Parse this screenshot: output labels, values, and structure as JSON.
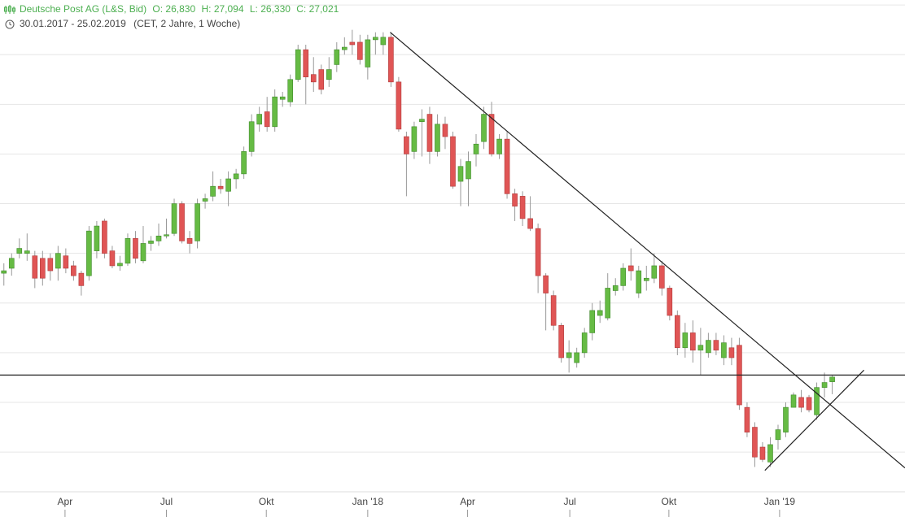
{
  "header": {
    "instrument": "Deutsche Post AG (L&S, Bid)",
    "ohlc": [
      "O: 26,830",
      "H: 27,094",
      "L: 26,330",
      "C: 27,021"
    ],
    "range": "30.01.2017 - 25.02.2019",
    "settings": "(CET, 2 Jahre, 1 Woche)"
  },
  "chart_data": {
    "type": "candlestick",
    "open": [
      31.2,
      31.4,
      32.0,
      32.0,
      31.9,
      31.8,
      31.8,
      31.4,
      31.9,
      31.5,
      31.2,
      31.1,
      32.1,
      33.3,
      32.1,
      31.5,
      31.6,
      32.6,
      31.7,
      32.4,
      32.5,
      32.7,
      32.8,
      34.0,
      32.6,
      32.5,
      34.1,
      34.3,
      34.7,
      34.5,
      35.0,
      35.2,
      36.1,
      37.2,
      37.7,
      37.1,
      38.2,
      38.1,
      39.0,
      40.2,
      39.2,
      39.4,
      39.0,
      39.6,
      40.2,
      40.5,
      40.5,
      39.5,
      40.6,
      40.4,
      40.7,
      38.9,
      36.7,
      36.1,
      37.3,
      37.6,
      36.1,
      37.2,
      36.7,
      34.9,
      35.0,
      36.0,
      36.5,
      37.6,
      36.0,
      36.6,
      34.4,
      34.3,
      33.4,
      33.0,
      31.1,
      30.3,
      29.1,
      27.8,
      27.6,
      28.0,
      28.8,
      29.5,
      29.4,
      30.5,
      30.7,
      31.5,
      30.4,
      30.9,
      31.0,
      31.5,
      30.6,
      29.5,
      28.2,
      28.8,
      28.1,
      28.0,
      28.5,
      27.8,
      28.2,
      28.3,
      25.8,
      25.0,
      24.2,
      23.6,
      24.5,
      24.8,
      25.8,
      26.2,
      26.2,
      25.5,
      26.6,
      26.83
    ],
    "high": [
      31.6,
      32.0,
      32.6,
      32.8,
      32.1,
      32.1,
      32.0,
      32.3,
      32.2,
      31.7,
      31.3,
      33.1,
      33.3,
      33.4,
      32.3,
      31.9,
      32.8,
      32.9,
      33.1,
      32.7,
      33.2,
      33.4,
      34.2,
      34.1,
      32.9,
      34.2,
      34.4,
      35.3,
      35.0,
      35.3,
      35.4,
      36.3,
      37.6,
      37.9,
      38.3,
      38.6,
      38.5,
      39.2,
      40.4,
      40.4,
      39.9,
      39.6,
      39.9,
      40.5,
      40.7,
      41.0,
      40.8,
      40.8,
      40.9,
      40.9,
      40.9,
      39.1,
      36.9,
      37.3,
      37.8,
      37.9,
      37.6,
      37.5,
      36.9,
      35.8,
      36.1,
      36.8,
      37.9,
      38.1,
      36.8,
      36.9,
      34.6,
      34.5,
      34.3,
      33.2,
      31.2,
      30.5,
      29.2,
      28.5,
      28.2,
      29.0,
      30.0,
      30.1,
      31.2,
      31.0,
      31.6,
      32.2,
      31.5,
      31.5,
      32.0,
      31.7,
      30.7,
      29.7,
      29.2,
      29.3,
      29.0,
      28.8,
      28.8,
      28.7,
      28.6,
      28.6,
      26.0,
      25.2,
      24.4,
      24.6,
      25.1,
      26.0,
      26.4,
      26.5,
      26.3,
      26.8,
      27.2,
      27.094
    ],
    "low": [
      30.7,
      31.1,
      31.8,
      31.7,
      30.6,
      30.7,
      30.9,
      30.9,
      31.2,
      30.9,
      30.3,
      30.9,
      31.8,
      31.8,
      31.4,
      31.3,
      31.5,
      31.6,
      31.6,
      32.1,
      32.3,
      32.6,
      32.7,
      32.4,
      32.0,
      32.2,
      33.8,
      34.1,
      34.4,
      33.9,
      34.6,
      35.0,
      35.9,
      36.9,
      36.9,
      36.9,
      37.9,
      37.9,
      38.9,
      38.0,
      38.5,
      38.4,
      38.7,
      39.3,
      40.0,
      40.0,
      39.6,
      39.0,
      40.0,
      40.0,
      38.7,
      36.9,
      34.3,
      35.8,
      35.9,
      35.6,
      35.9,
      36.2,
      34.6,
      33.9,
      33.9,
      35.5,
      36.2,
      35.9,
      35.8,
      34.2,
      33.3,
      33.1,
      32.9,
      30.4,
      28.9,
      28.9,
      27.6,
      27.2,
      27.4,
      27.8,
      28.5,
      29.2,
      29.3,
      30.3,
      30.5,
      30.9,
      30.2,
      30.5,
      30.8,
      30.3,
      29.3,
      27.9,
      27.8,
      27.6,
      27.1,
      27.8,
      27.9,
      27.5,
      27.5,
      25.7,
      24.6,
      23.4,
      23.6,
      23.4,
      24.1,
      24.6,
      25.8,
      25.6,
      25.6,
      25.3,
      26.2,
      26.33
    ],
    "close": [
      31.3,
      31.8,
      32.2,
      32.1,
      31.0,
      31.0,
      31.3,
      32.0,
      31.4,
      31.1,
      30.7,
      32.9,
      33.1,
      32.0,
      31.5,
      31.6,
      32.6,
      31.8,
      32.4,
      32.5,
      32.7,
      32.75,
      34.0,
      32.5,
      32.4,
      34.0,
      34.2,
      34.7,
      34.6,
      35.0,
      35.2,
      36.1,
      37.3,
      37.6,
      37.1,
      38.3,
      38.3,
      39.0,
      40.2,
      39.1,
      38.9,
      38.6,
      39.4,
      40.2,
      40.3,
      40.4,
      39.8,
      40.6,
      40.7,
      40.7,
      38.9,
      37.0,
      36.0,
      37.1,
      37.4,
      36.1,
      37.2,
      36.7,
      34.7,
      35.5,
      35.7,
      36.4,
      37.6,
      36.0,
      36.6,
      34.4,
      33.9,
      33.4,
      33.0,
      31.1,
      30.4,
      29.1,
      27.8,
      28.0,
      28.0,
      28.8,
      29.7,
      29.7,
      30.6,
      30.7,
      31.4,
      31.3,
      31.3,
      31.0,
      31.5,
      30.6,
      29.5,
      28.2,
      28.8,
      28.1,
      28.3,
      28.5,
      28.1,
      28.4,
      27.8,
      25.9,
      24.8,
      23.8,
      23.7,
      24.3,
      24.9,
      25.8,
      26.3,
      25.8,
      25.7,
      26.6,
      26.8,
      27.021
    ],
    "up_color": "#66bb44",
    "down_color": "#e05555",
    "xlim": [
      -0.5,
      116.4
    ],
    "ylim": [
      22.4,
      42.2
    ],
    "yticks": [
      24,
      26,
      28,
      30,
      32,
      34,
      36,
      38,
      40,
      42
    ],
    "grid": true,
    "xticks": [
      {
        "value": 7.9,
        "label": "Apr"
      },
      {
        "value": 21.0,
        "label": "Jul"
      },
      {
        "value": 33.9,
        "label": "Okt"
      },
      {
        "value": 47.0,
        "label": "Jan '18"
      },
      {
        "value": 59.9,
        "label": "Apr"
      },
      {
        "value": 73.1,
        "label": "Jul"
      },
      {
        "value": 85.9,
        "label": "Okt"
      },
      {
        "value": 100.2,
        "label": "Jan '19"
      }
    ],
    "trendlines": [
      {
        "x": [
          49.9,
          116.4
        ],
        "y": [
          40.9,
          23.36
        ]
      },
      {
        "x": [
          -0.5,
          116.4
        ],
        "y": [
          27.1,
          27.1
        ]
      },
      {
        "x": [
          98.3,
          111.1
        ],
        "y": [
          23.26,
          27.3
        ]
      }
    ]
  }
}
